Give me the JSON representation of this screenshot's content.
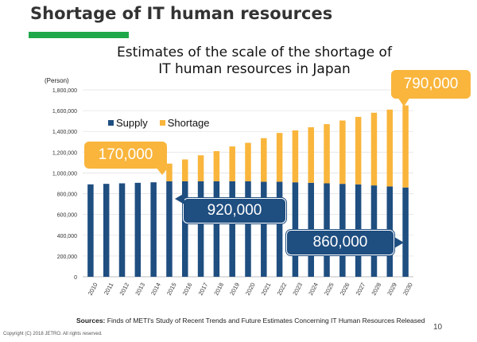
{
  "slide": {
    "title": "Shortage of IT human resources",
    "accent_color": "#1fa84a",
    "page_number": "10",
    "copyright": "Copyright (C) 2018 JETRO. All rights reserved."
  },
  "source": {
    "label": "Sources:",
    "text": "Finds of METI's Study of Recent Trends and Future Estimates Concerning IT Human Resources Released"
  },
  "callouts": {
    "shortage_2015": "170,000",
    "shortage_2030": "790,000",
    "supply_peak": "920,000",
    "supply_2030": "860,000"
  },
  "chart_data": {
    "type": "bar",
    "stacked": true,
    "title": "Estimates of the scale of the shortage of IT human resources in Japan",
    "title_lines": [
      "Estimates of the scale of the shortage of",
      "IT human resources in Japan"
    ],
    "ylabel": "(Person)",
    "xlabel": "",
    "ylim": [
      0,
      1800000
    ],
    "yticks": [
      0,
      200000,
      400000,
      600000,
      800000,
      1000000,
      1200000,
      1400000,
      1600000,
      1800000
    ],
    "ytick_labels": [
      "0",
      "200,000",
      "400,000",
      "600,000",
      "800,000",
      "1,000,000",
      "1,200,000",
      "1,400,000",
      "1,600,000",
      "1,800,000"
    ],
    "grid": true,
    "legend_position": "top-left",
    "categories": [
      "2010",
      "2011",
      "2012",
      "2013",
      "2014",
      "2015",
      "2016",
      "2017",
      "2018",
      "2019",
      "2020",
      "2021",
      "2022",
      "2023",
      "2024",
      "2025",
      "2026",
      "2027",
      "2028",
      "2029",
      "2030"
    ],
    "series": [
      {
        "name": "Supply",
        "color": "#1f4e80",
        "values": [
          890000,
          895000,
          900000,
          905000,
          910000,
          920000,
          920000,
          920000,
          920000,
          920000,
          920000,
          915000,
          915000,
          910000,
          905000,
          900000,
          895000,
          890000,
          880000,
          870000,
          860000
        ]
      },
      {
        "name": "Shortage",
        "color": "#f9b53c",
        "values": [
          0,
          0,
          0,
          0,
          0,
          170000,
          210000,
          250000,
          290000,
          335000,
          370000,
          420000,
          470000,
          500000,
          535000,
          570000,
          610000,
          650000,
          700000,
          740000,
          790000
        ]
      }
    ]
  }
}
